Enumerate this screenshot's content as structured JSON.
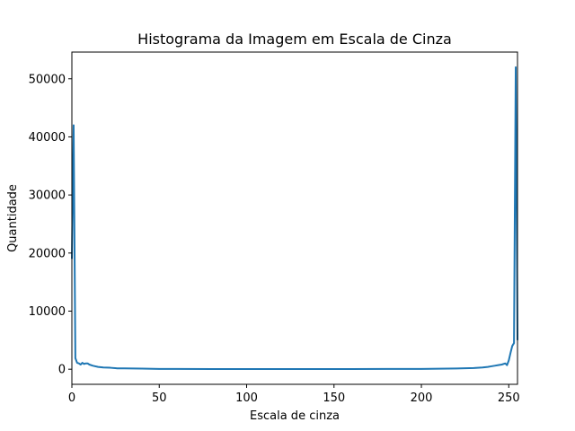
{
  "chart_data": {
    "type": "line",
    "title": "Histograma da Imagem em Escala de Cinza",
    "xlabel": "Escala de cinza",
    "ylabel": "Quantidade",
    "xlim": [
      0,
      255
    ],
    "ylim": [
      -2600,
      54600
    ],
    "x_ticks": [
      0,
      50,
      100,
      150,
      200,
      250
    ],
    "y_ticks": [
      0,
      10000,
      20000,
      30000,
      40000,
      50000
    ],
    "grid": false,
    "legend": "none",
    "series_color": "#1f77b4",
    "series": [
      {
        "x": [
          0,
          1,
          2,
          3,
          4,
          5,
          6,
          7,
          8,
          9,
          10,
          12,
          15,
          18,
          22,
          26,
          30,
          40,
          50,
          60,
          80,
          100,
          120,
          140,
          160,
          180,
          200,
          210,
          220,
          225,
          230,
          235,
          238,
          240,
          242,
          244,
          246,
          248,
          249,
          250,
          251,
          252,
          253,
          254,
          255
        ],
        "y": [
          19000,
          42000,
          1900,
          1100,
          1000,
          800,
          1100,
          900,
          1000,
          1000,
          800,
          600,
          400,
          300,
          250,
          150,
          150,
          100,
          50,
          50,
          30,
          30,
          30,
          30,
          30,
          40,
          50,
          80,
          120,
          160,
          200,
          300,
          400,
          500,
          600,
          700,
          800,
          1000,
          700,
          1500,
          2800,
          4000,
          4500,
          52000,
          5000
        ]
      }
    ]
  }
}
